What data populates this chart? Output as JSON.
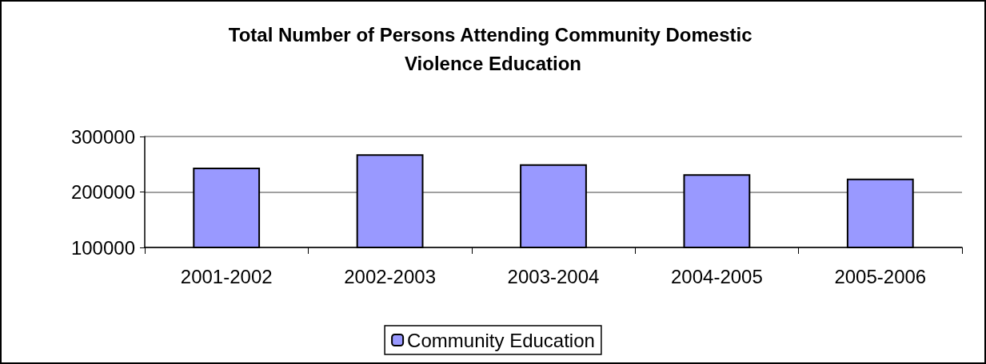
{
  "chart_data": {
    "type": "bar",
    "title": "Total Number of Persons Attending Community Domestic Violence Education",
    "categories": [
      "2001-2002",
      "2002-2003",
      "2003-2004",
      "2004-2005",
      "2005-2006"
    ],
    "series": [
      {
        "name": "Community Education",
        "color": "#9999ff",
        "values": [
          244000,
          268000,
          250000,
          232000,
          224000
        ]
      }
    ],
    "ylim": [
      100000,
      300000
    ],
    "yticks": [
      100000,
      200000,
      300000
    ],
    "grid": "y",
    "legend": "bottom"
  }
}
